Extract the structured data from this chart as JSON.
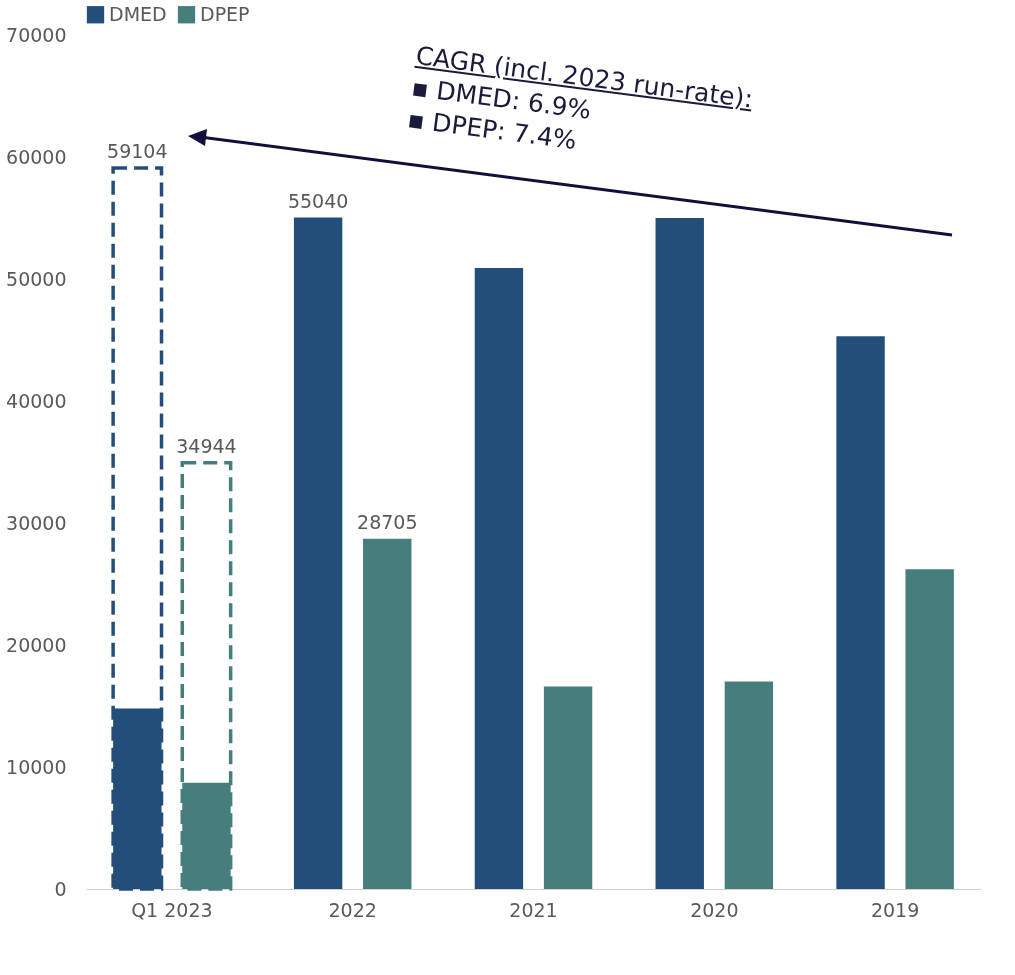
{
  "chart_data": {
    "type": "bar",
    "categories": [
      "Q1 2023",
      "2022",
      "2021",
      "2020",
      "2019"
    ],
    "series": [
      {
        "name": "DMED",
        "color": "#234e7a",
        "values": [
          14800,
          55040,
          50900,
          55000,
          45300
        ],
        "value_labels": [
          null,
          "55040",
          null,
          null,
          null
        ]
      },
      {
        "name": "DPEP",
        "color": "#467d7d",
        "values": [
          8700,
          28705,
          16600,
          17000,
          26200
        ],
        "value_labels": [
          null,
          "28705",
          null,
          null,
          null
        ]
      },
      {
        "color": "#234e7a",
        "line_style": "dashed",
        "values": [
          59104,
          null,
          null,
          null,
          null
        ],
        "value_labels": [
          "59104",
          null,
          null,
          null,
          null
        ]
      },
      {
        "color": "#467d7d",
        "line_style": "dashed",
        "values": [
          34944,
          null,
          null,
          null,
          null
        ],
        "value_labels": [
          "34944",
          null,
          null,
          null,
          null
        ]
      }
    ],
    "ylim": [
      0,
      70000
    ],
    "yticks": [
      0,
      10000,
      20000,
      30000,
      40000,
      50000,
      60000,
      70000
    ],
    "grid": false,
    "legend": "top",
    "annotations": [
      "CAGR (incl. 2023 run-rate):",
      "▪ DMED: 6.9%",
      "▪ DPEP: 7.4%"
    ]
  }
}
